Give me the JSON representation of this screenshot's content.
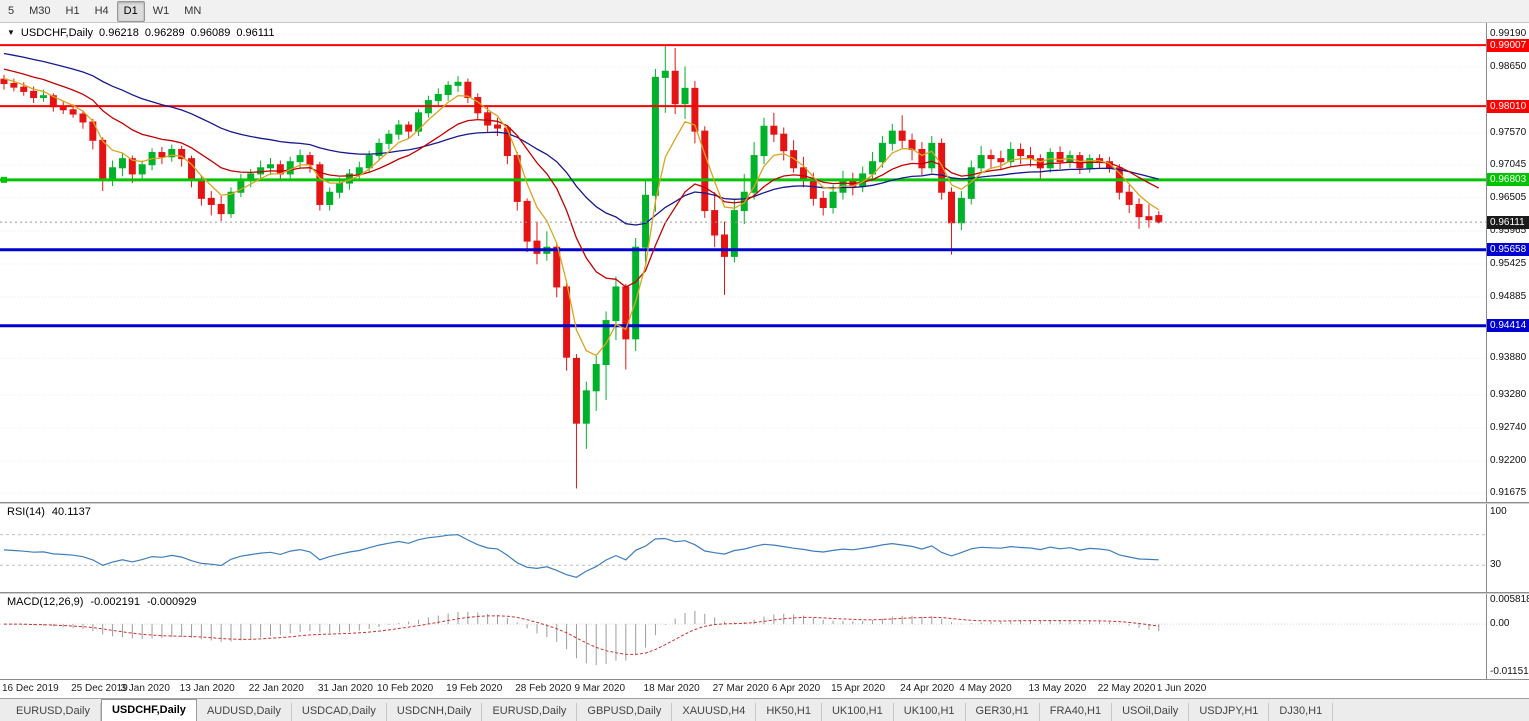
{
  "toolbar": {
    "timeframes": [
      {
        "label": "5"
      },
      {
        "label": "M30"
      },
      {
        "label": "H1"
      },
      {
        "label": "H4"
      },
      {
        "label": "D1",
        "active": true
      },
      {
        "label": "W1"
      },
      {
        "label": "MN"
      }
    ]
  },
  "header": {
    "arrow_icon": "▼",
    "symbol_period": "USDCHF,Daily",
    "open": "0.96218",
    "high": "0.96289",
    "low": "0.96089",
    "close": "0.96111"
  },
  "price_axis_labels": [
    "0.99190",
    "0.98650",
    "0.97570",
    "0.97045",
    "0.96505",
    "0.95965",
    "0.95425",
    "0.94885",
    "0.93880",
    "0.93280",
    "0.92740",
    "0.92200",
    "0.91675"
  ],
  "rsi_panel": {
    "title": "RSI(14)",
    "value": "40.1137",
    "axis_labels": [
      "100",
      "30"
    ]
  },
  "macd_panel": {
    "title": "MACD(12,26,9)",
    "value1": "-0.002191",
    "value2": "-0.000929",
    "axis_top": "0.005818",
    "axis_zero": "0.00",
    "axis_bottom": "-0.011514"
  },
  "tabs": {
    "items": [
      {
        "label": "EURUSD,Daily"
      },
      {
        "label": "USDCHF,Daily",
        "active": true
      },
      {
        "label": "AUDUSD,Daily"
      },
      {
        "label": "USDCAD,Daily"
      },
      {
        "label": "USDCNH,Daily"
      },
      {
        "label": "EURUSD,Daily"
      },
      {
        "label": "GBPUSD,Daily"
      },
      {
        "label": "XAUUSD,H4"
      },
      {
        "label": "HK50,H1"
      },
      {
        "label": "UK100,H1"
      },
      {
        "label": "UK100,H1"
      },
      {
        "label": "GER30,H1"
      },
      {
        "label": "FRA40,H1"
      },
      {
        "label": "USOil,Daily"
      },
      {
        "label": "USDJPY,H1"
      },
      {
        "label": "DJ30,H1"
      }
    ]
  },
  "chart_data": {
    "type": "candlestick",
    "symbol": "USDCHF",
    "timeframe": "Daily",
    "up_color": "#00b22a",
    "down_color": "#e51414",
    "price_range": {
      "top": 0.9937,
      "bottom": 0.9153
    },
    "current_price": 0.96111,
    "current_price_label": "0.96111",
    "current_price_badge_color": "#1a1a1a",
    "hlines": [
      {
        "label": "0.99007",
        "value": 0.99007,
        "color": "#ff0000",
        "width": 2
      },
      {
        "label": "0.98010",
        "value": 0.9801,
        "color": "#ff0000",
        "width": 2
      },
      {
        "label": "0.96803",
        "value": 0.96803,
        "color": "#00c400",
        "width": 3
      },
      {
        "label": "0.95658",
        "value": 0.95658,
        "color": "#0000d0",
        "width": 3
      },
      {
        "label": "0.94414",
        "value": 0.94414,
        "color": "#0000d0",
        "width": 3
      }
    ],
    "x_labels": [
      {
        "i": 0,
        "t": "16 Dec 2019"
      },
      {
        "i": 7,
        "t": "25 Dec 2019"
      },
      {
        "i": 12,
        "t": "3 Jan 2020"
      },
      {
        "i": 18,
        "t": "13 Jan 2020"
      },
      {
        "i": 25,
        "t": "22 Jan 2020"
      },
      {
        "i": 32,
        "t": "31 Jan 2020"
      },
      {
        "i": 38,
        "t": "10 Feb 2020"
      },
      {
        "i": 45,
        "t": "19 Feb 2020"
      },
      {
        "i": 52,
        "t": "28 Feb 2020"
      },
      {
        "i": 58,
        "t": "9 Mar 2020"
      },
      {
        "i": 65,
        "t": "18 Mar 2020"
      },
      {
        "i": 72,
        "t": "27 Mar 2020"
      },
      {
        "i": 78,
        "t": "6 Apr 2020"
      },
      {
        "i": 84,
        "t": "15 Apr 2020"
      },
      {
        "i": 91,
        "t": "24 Apr 2020"
      },
      {
        "i": 97,
        "t": "4 May 2020"
      },
      {
        "i": 104,
        "t": "13 May 2020"
      },
      {
        "i": 111,
        "t": "22 May 2020"
      },
      {
        "i": 117,
        "t": "1 Jun 2020"
      }
    ],
    "indicators": {
      "moving_averages": [
        {
          "name": "ma-slow",
          "color": "#181890",
          "alpha": 0.055,
          "seed": 0.989
        },
        {
          "name": "ma-medium",
          "color": "#c40000",
          "alpha": 0.13,
          "seed": 0.9865
        },
        {
          "name": "ma-fast",
          "color": "#d9a520",
          "alpha": 0.34,
          "seed": 0.985
        }
      ],
      "rsi": {
        "period": 14,
        "current": 40.1137,
        "color": "#3e7dbd",
        "levels": [
          70,
          30
        ]
      },
      "macd": {
        "fast": 12,
        "slow": 26,
        "signal": 9,
        "current": -0.002191,
        "signal_current": -0.000929,
        "hist_color": "#9c9c9c",
        "signal_color": "#cc3333"
      }
    },
    "ohlc": [
      [
        0.9845,
        0.9852,
        0.9828,
        0.9838
      ],
      [
        0.9838,
        0.9846,
        0.9825,
        0.9832
      ],
      [
        0.9832,
        0.984,
        0.9818,
        0.9825
      ],
      [
        0.9825,
        0.9833,
        0.9806,
        0.9815
      ],
      [
        0.9815,
        0.9828,
        0.9808,
        0.9818
      ],
      [
        0.9818,
        0.9822,
        0.9792,
        0.98
      ],
      [
        0.98,
        0.981,
        0.9788,
        0.9795
      ],
      [
        0.9795,
        0.9804,
        0.9782,
        0.9788
      ],
      [
        0.9788,
        0.9794,
        0.9764,
        0.9775
      ],
      [
        0.9775,
        0.978,
        0.973,
        0.9745
      ],
      [
        0.9745,
        0.975,
        0.9662,
        0.968
      ],
      [
        0.968,
        0.9712,
        0.967,
        0.97
      ],
      [
        0.97,
        0.9724,
        0.9686,
        0.9715
      ],
      [
        0.9715,
        0.972,
        0.9675,
        0.969
      ],
      [
        0.969,
        0.9712,
        0.968,
        0.9705
      ],
      [
        0.9705,
        0.9732,
        0.9696,
        0.9725
      ],
      [
        0.9725,
        0.9734,
        0.9706,
        0.9718
      ],
      [
        0.9718,
        0.9738,
        0.971,
        0.973
      ],
      [
        0.973,
        0.9736,
        0.9702,
        0.9715
      ],
      [
        0.9715,
        0.972,
        0.9668,
        0.968
      ],
      [
        0.968,
        0.9688,
        0.9638,
        0.965
      ],
      [
        0.965,
        0.9662,
        0.9622,
        0.964
      ],
      [
        0.964,
        0.9654,
        0.9613,
        0.9625
      ],
      [
        0.9625,
        0.9668,
        0.9618,
        0.966
      ],
      [
        0.966,
        0.969,
        0.9652,
        0.968
      ],
      [
        0.968,
        0.9698,
        0.9668,
        0.969
      ],
      [
        0.969,
        0.9712,
        0.968,
        0.97
      ],
      [
        0.97,
        0.9716,
        0.9688,
        0.9705
      ],
      [
        0.9705,
        0.9712,
        0.9678,
        0.969
      ],
      [
        0.969,
        0.9718,
        0.9682,
        0.971
      ],
      [
        0.971,
        0.973,
        0.97,
        0.972
      ],
      [
        0.972,
        0.9726,
        0.9692,
        0.9705
      ],
      [
        0.9705,
        0.971,
        0.963,
        0.964
      ],
      [
        0.964,
        0.9668,
        0.963,
        0.966
      ],
      [
        0.966,
        0.9684,
        0.965,
        0.9675
      ],
      [
        0.9675,
        0.9698,
        0.9664,
        0.969
      ],
      [
        0.969,
        0.971,
        0.968,
        0.97
      ],
      [
        0.97,
        0.9728,
        0.9692,
        0.972
      ],
      [
        0.972,
        0.9748,
        0.9712,
        0.974
      ],
      [
        0.974,
        0.9762,
        0.973,
        0.9755
      ],
      [
        0.9755,
        0.9778,
        0.9746,
        0.977
      ],
      [
        0.977,
        0.9776,
        0.9748,
        0.976
      ],
      [
        0.976,
        0.9796,
        0.9752,
        0.979
      ],
      [
        0.979,
        0.9818,
        0.9782,
        0.981
      ],
      [
        0.981,
        0.983,
        0.98,
        0.982
      ],
      [
        0.982,
        0.9842,
        0.981,
        0.9835
      ],
      [
        0.9835,
        0.985,
        0.9824,
        0.984
      ],
      [
        0.984,
        0.9846,
        0.9806,
        0.9815
      ],
      [
        0.9815,
        0.9822,
        0.978,
        0.979
      ],
      [
        0.979,
        0.98,
        0.9758,
        0.977
      ],
      [
        0.977,
        0.9782,
        0.9752,
        0.9765
      ],
      [
        0.9765,
        0.977,
        0.9706,
        0.972
      ],
      [
        0.972,
        0.9726,
        0.963,
        0.9645
      ],
      [
        0.9645,
        0.965,
        0.9562,
        0.958
      ],
      [
        0.958,
        0.9612,
        0.9542,
        0.956
      ],
      [
        0.956,
        0.9596,
        0.9548,
        0.957
      ],
      [
        0.957,
        0.9576,
        0.9488,
        0.9505
      ],
      [
        0.9505,
        0.9512,
        0.9368,
        0.939
      ],
      [
        0.9388,
        0.9395,
        0.9175,
        0.9282
      ],
      [
        0.9282,
        0.935,
        0.924,
        0.9335
      ],
      [
        0.9335,
        0.9392,
        0.9302,
        0.9378
      ],
      [
        0.9378,
        0.9465,
        0.932,
        0.945
      ],
      [
        0.945,
        0.9522,
        0.9418,
        0.9505
      ],
      [
        0.9505,
        0.951,
        0.937,
        0.942
      ],
      [
        0.942,
        0.9585,
        0.94,
        0.957
      ],
      [
        0.957,
        0.968,
        0.954,
        0.9655
      ],
      [
        0.9655,
        0.9862,
        0.9628,
        0.9848
      ],
      [
        0.9848,
        0.9901,
        0.979,
        0.9858
      ],
      [
        0.9858,
        0.9896,
        0.9788,
        0.9805
      ],
      [
        0.9805,
        0.9866,
        0.978,
        0.983
      ],
      [
        0.983,
        0.9842,
        0.974,
        0.976
      ],
      [
        0.976,
        0.9768,
        0.9618,
        0.963
      ],
      [
        0.963,
        0.966,
        0.957,
        0.959
      ],
      [
        0.959,
        0.9612,
        0.9492,
        0.9555
      ],
      [
        0.9555,
        0.9648,
        0.9545,
        0.963
      ],
      [
        0.963,
        0.969,
        0.9608,
        0.966
      ],
      [
        0.966,
        0.9742,
        0.9648,
        0.972
      ],
      [
        0.972,
        0.9782,
        0.9706,
        0.9768
      ],
      [
        0.9768,
        0.979,
        0.9742,
        0.9755
      ],
      [
        0.9755,
        0.9766,
        0.9712,
        0.9728
      ],
      [
        0.9728,
        0.9745,
        0.9692,
        0.97
      ],
      [
        0.97,
        0.9718,
        0.9668,
        0.968
      ],
      [
        0.968,
        0.9692,
        0.9638,
        0.965
      ],
      [
        0.965,
        0.9662,
        0.9622,
        0.9635
      ],
      [
        0.9635,
        0.9672,
        0.9625,
        0.966
      ],
      [
        0.966,
        0.9695,
        0.9648,
        0.968
      ],
      [
        0.968,
        0.9692,
        0.9655,
        0.967
      ],
      [
        0.967,
        0.9702,
        0.966,
        0.969
      ],
      [
        0.969,
        0.9726,
        0.968,
        0.971
      ],
      [
        0.971,
        0.9752,
        0.97,
        0.974
      ],
      [
        0.974,
        0.9772,
        0.9728,
        0.976
      ],
      [
        0.976,
        0.9786,
        0.9732,
        0.9745
      ],
      [
        0.9745,
        0.9756,
        0.9712,
        0.973
      ],
      [
        0.973,
        0.9742,
        0.9688,
        0.97
      ],
      [
        0.97,
        0.9752,
        0.9692,
        0.974
      ],
      [
        0.974,
        0.9748,
        0.9648,
        0.966
      ],
      [
        0.966,
        0.9668,
        0.9558,
        0.961
      ],
      [
        0.961,
        0.9662,
        0.9598,
        0.965
      ],
      [
        0.965,
        0.9712,
        0.964,
        0.97
      ],
      [
        0.97,
        0.9736,
        0.969,
        0.972
      ],
      [
        0.972,
        0.973,
        0.9698,
        0.9715
      ],
      [
        0.9715,
        0.9728,
        0.9696,
        0.971
      ],
      [
        0.971,
        0.9742,
        0.9702,
        0.973
      ],
      [
        0.973,
        0.974,
        0.9706,
        0.972
      ],
      [
        0.972,
        0.9734,
        0.9702,
        0.9715
      ],
      [
        0.9715,
        0.9722,
        0.9682,
        0.97
      ],
      [
        0.97,
        0.9732,
        0.9692,
        0.9725
      ],
      [
        0.9725,
        0.9735,
        0.9698,
        0.971
      ],
      [
        0.971,
        0.9728,
        0.97,
        0.972
      ],
      [
        0.972,
        0.9726,
        0.969,
        0.97
      ],
      [
        0.97,
        0.9722,
        0.9692,
        0.9715
      ],
      [
        0.9715,
        0.9722,
        0.9698,
        0.971
      ],
      [
        0.971,
        0.9718,
        0.9692,
        0.97
      ],
      [
        0.97,
        0.9706,
        0.9648,
        0.966
      ],
      [
        0.966,
        0.9672,
        0.9626,
        0.964
      ],
      [
        0.964,
        0.965,
        0.96,
        0.962
      ],
      [
        0.962,
        0.964,
        0.9602,
        0.9615
      ],
      [
        0.96218,
        0.96289,
        0.96089,
        0.96111
      ]
    ]
  }
}
